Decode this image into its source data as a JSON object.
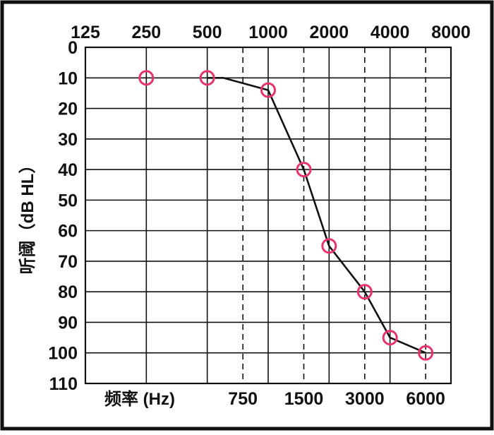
{
  "chart_data": {
    "type": "line",
    "title": "",
    "xlabel": "频率 (Hz)",
    "ylabel": "听阈（dB HL）",
    "x_scale": "log2",
    "top_ticks": [
      "125",
      "250",
      "500",
      "1000",
      "2000",
      "4000",
      "8000"
    ],
    "bottom_ticks": [
      "750",
      "1500",
      "3000",
      "6000"
    ],
    "y_ticks": [
      "0",
      "10",
      "20",
      "30",
      "40",
      "50",
      "60",
      "70",
      "80",
      "90",
      "100",
      "110"
    ],
    "ylim": [
      0,
      110
    ],
    "y_inverted": true,
    "grid": true,
    "series": [
      {
        "marker": "circle",
        "points": [
          {
            "x": 250,
            "y": 10
          },
          {
            "x": 500,
            "y": 10
          },
          {
            "x": 1000,
            "y": 14
          },
          {
            "x": 1500,
            "y": 40
          },
          {
            "x": 2000,
            "y": 65
          },
          {
            "x": 3000,
            "y": 80
          },
          {
            "x": 4000,
            "y": 95
          },
          {
            "x": 6000,
            "y": 100
          }
        ]
      }
    ],
    "unmarked_points": [
      {
        "x": 600,
        "y": 10
      }
    ]
  },
  "colors": {
    "marker": "#e8336a",
    "line": "#111111",
    "grid": "#111111",
    "background": "#ffffff",
    "frame": "#111111"
  }
}
